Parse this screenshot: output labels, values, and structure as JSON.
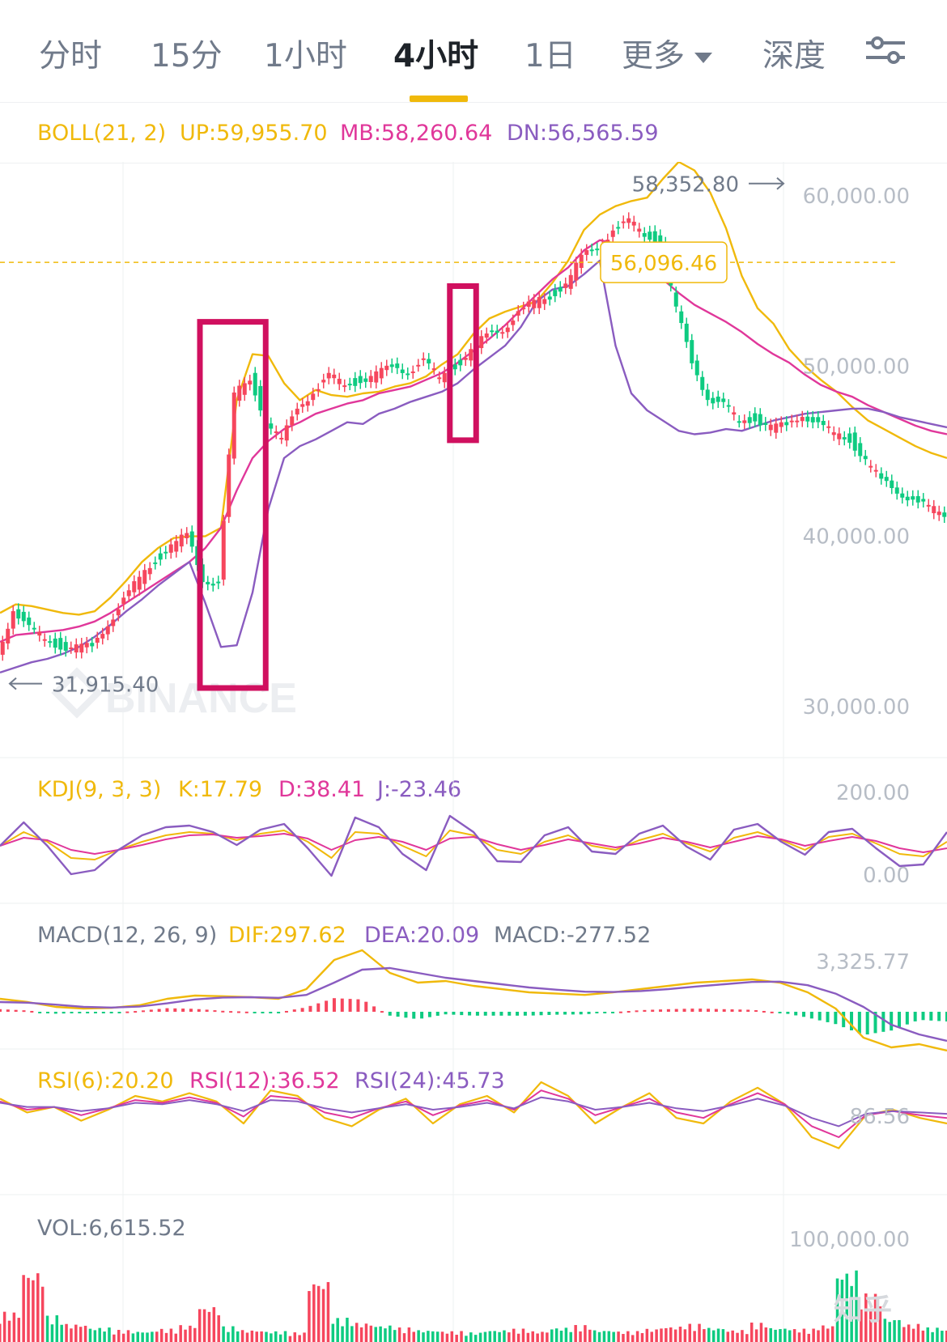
{
  "tabs": [
    {
      "label": "分时",
      "active": false
    },
    {
      "label": "15分",
      "active": false
    },
    {
      "label": "1小时",
      "active": false
    },
    {
      "label": "4小时",
      "active": true
    },
    {
      "label": "1日",
      "active": false
    },
    {
      "label": "更多",
      "active": false
    },
    {
      "label": "深度",
      "active": false
    }
  ],
  "colors": {
    "up": "#f6465d",
    "down": "#0ecb81",
    "yellow": "#f0b90b",
    "pink": "#e0379a",
    "purple": "#8a5cc0",
    "grid": "#eef0f2",
    "axis": "#b7bdc6",
    "text": "#707a8a",
    "highlight": "#d0105f"
  },
  "indicators": {
    "boll": {
      "params": "BOLL(21, 2)",
      "up": "UP:59,955.70",
      "mb": "MB:58,260.64",
      "dn": "DN:56,565.59"
    },
    "kdj": {
      "params": "KDJ(9, 3, 3)",
      "k": "K:17.79",
      "d": "D:38.41",
      "j": "J:-23.46"
    },
    "macd": {
      "params": "MACD(12, 26, 9)",
      "dif": "DIF:297.62",
      "dea": "DEA:20.09",
      "macd": "MACD:-277.52"
    },
    "rsi": {
      "rsi6": "RSI(6):20.20",
      "rsi12": "RSI(12):36.52",
      "rsi24": "RSI(24):45.73"
    },
    "vol": {
      "label": "VOL:6,615.52"
    }
  },
  "chart_data": {
    "type": "line",
    "price_ylim": [
      27000,
      62000
    ],
    "price_ticks": [
      "60,000.00",
      "50,000.00",
      "40,000.00",
      "30,000.00"
    ],
    "price_tick_values": [
      60000,
      50000,
      40000,
      30000
    ],
    "high_label": "58,352.80",
    "low_label": "31,915.40",
    "current_price": 56096.46,
    "current_price_label": "56,096.46",
    "x": [
      0,
      6,
      12,
      18,
      24,
      30,
      36,
      42,
      48,
      54,
      60,
      66,
      72,
      78,
      84,
      90,
      96,
      102,
      108,
      114,
      120,
      126,
      132,
      138,
      144,
      150,
      156,
      162,
      168,
      174,
      180,
      186,
      192,
      198,
      204,
      210,
      216,
      222,
      228,
      234,
      240,
      246,
      252,
      258,
      264,
      270,
      276,
      282,
      288,
      294,
      300,
      306,
      312,
      318,
      324,
      330,
      336,
      342,
      348,
      354,
      360
    ],
    "series": [
      {
        "values": [
          33000,
          35800,
          34500,
          34000,
          33600,
          33400,
          33500,
          35000,
          36200,
          37500,
          38700,
          39400,
          40000,
          37600,
          37200,
          48200,
          49400,
          46800,
          45500,
          47700,
          48500,
          49300,
          49000,
          49200,
          49400,
          50000,
          49800,
          50200,
          49300,
          50100,
          50800,
          51800,
          52300,
          53100,
          53700,
          54200,
          54800,
          56300,
          57100,
          58000,
          58400,
          57800,
          57300,
          53200,
          50300,
          48200,
          47600,
          46800,
          47000,
          46300,
          46500,
          47300,
          46500,
          46000,
          45800,
          44400,
          43200,
          42800,
          42100,
          41600,
          41400
        ]
      },
      {
        "values": [
          35500,
          36000,
          35900,
          35700,
          35500,
          35400,
          35600,
          36400,
          37400,
          38500,
          39300,
          39900,
          40000,
          40000,
          40500,
          48000,
          50700,
          50600,
          49000,
          48000,
          48600,
          48300,
          48200,
          48400,
          48500,
          48800,
          49000,
          49400,
          50100,
          50700,
          51900,
          52800,
          53200,
          53500,
          53800,
          54900,
          56200,
          58000,
          58900,
          59400,
          59700,
          59900,
          61000,
          62000,
          61500,
          60200,
          58100,
          55300,
          53400,
          52500,
          51000,
          50000,
          49200,
          48500,
          47600,
          46800,
          46300,
          45800,
          45300,
          44900,
          44600
        ]
      },
      {
        "values": [
          33800,
          34200,
          34300,
          34400,
          34500,
          34700,
          35000,
          35500,
          36100,
          36700,
          37300,
          37900,
          38500,
          39300,
          40500,
          42700,
          44600,
          45600,
          46300,
          46700,
          47200,
          47500,
          47800,
          48000,
          48400,
          48600,
          48800,
          49200,
          49600,
          50200,
          50900,
          51600,
          52400,
          53300,
          54200,
          55100,
          55800,
          56800,
          57400,
          57200,
          56800,
          56000,
          55100,
          54300,
          53600,
          53100,
          52600,
          52000,
          51300,
          50700,
          50200,
          49500,
          48900,
          48500,
          48200,
          47700,
          47300,
          46900,
          46500,
          46200,
          46000
        ]
      },
      {
        "values": [
          32000,
          32300,
          32600,
          32800,
          33100,
          33500,
          34100,
          34800,
          35600,
          36300,
          37100,
          37800,
          38500,
          36100,
          33500,
          33600,
          36700,
          41600,
          44600,
          45300,
          45700,
          46200,
          46700,
          46600,
          47200,
          47500,
          47900,
          48200,
          48500,
          49000,
          49800,
          50500,
          51200,
          52300,
          53800,
          54500,
          54700,
          55400,
          56200,
          51200,
          48400,
          47400,
          46800,
          46200,
          46000,
          46100,
          46300,
          46200,
          46500,
          46800,
          47000,
          47200,
          47300,
          47400,
          47500,
          47500,
          47300,
          47000,
          46800,
          46600,
          46400
        ]
      }
    ],
    "series_panels": [
      "price",
      "price",
      "price",
      "price"
    ],
    "series_colors": [
      "#f6465d",
      "#f0b90b",
      "#e0379a",
      "#8a5cc0"
    ],
    "highlight_boxes": [
      {
        "x0": 76,
        "x1": 101
      },
      {
        "x0": 171,
        "x1": 181
      }
    ],
    "kdj": {
      "ticks": [
        "200.00",
        "0.00"
      ],
      "tick_values": [
        200,
        0
      ],
      "k": [
        55,
        72,
        60,
        40,
        38,
        50,
        60,
        68,
        72,
        70,
        62,
        70,
        74,
        60,
        40,
        72,
        70,
        55,
        42,
        74,
        68,
        50,
        45,
        60,
        68,
        55,
        50,
        62,
        70,
        58,
        48,
        65,
        72,
        62,
        50,
        66,
        70,
        58,
        45,
        42,
        60
      ],
      "d": [
        55,
        65,
        62,
        50,
        45,
        50,
        56,
        63,
        68,
        69,
        65,
        67,
        70,
        64,
        50,
        62,
        66,
        60,
        50,
        64,
        66,
        57,
        50,
        56,
        63,
        58,
        53,
        58,
        65,
        60,
        53,
        60,
        67,
        63,
        55,
        61,
        66,
        61,
        52,
        47,
        52
      ],
      "j": [
        55,
        84,
        55,
        20,
        25,
        50,
        68,
        78,
        80,
        72,
        56,
        75,
        82,
        52,
        18,
        90,
        78,
        45,
        25,
        92,
        72,
        36,
        35,
        68,
        78,
        48,
        45,
        70,
        80,
        54,
        38,
        75,
        82,
        60,
        44,
        72,
        76,
        52,
        30,
        32,
        72
      ]
    },
    "macd": {
      "ticks": [
        "3,325.77"
      ],
      "tick_values": [
        3325.77
      ],
      "dif": [
        400,
        300,
        150,
        100,
        120,
        200,
        400,
        500,
        480,
        450,
        400,
        700,
        1600,
        1900,
        1200,
        900,
        950,
        800,
        700,
        600,
        560,
        520,
        600,
        700,
        800,
        900,
        950,
        1000,
        900,
        600,
        100,
        -800,
        -1100,
        -1000,
        -1200
      ],
      "dea": [
        300,
        280,
        220,
        150,
        130,
        160,
        260,
        380,
        440,
        450,
        430,
        520,
        900,
        1300,
        1350,
        1200,
        1050,
        950,
        850,
        750,
        680,
        620,
        610,
        640,
        700,
        780,
        850,
        920,
        930,
        820,
        560,
        150,
        -400,
        -700,
        -900
      ],
      "hist": [
        80,
        40,
        -60,
        -40,
        -20,
        30,
        110,
        90,
        30,
        0,
        -20,
        140,
        420,
        380,
        -120,
        -230,
        -80,
        -120,
        -120,
        -120,
        -90,
        -80,
        -10,
        50,
        80,
        100,
        80,
        60,
        -20,
        -180,
        -380,
        -720,
        -580,
        -250,
        -300
      ]
    },
    "rsi": {
      "ticks": [
        "86.56"
      ],
      "tick_values": [
        86.56
      ],
      "rsi6": [
        58,
        48,
        52,
        42,
        50,
        60,
        56,
        62,
        56,
        40,
        64,
        60,
        44,
        38,
        50,
        58,
        40,
        54,
        60,
        48,
        70,
        60,
        40,
        52,
        62,
        44,
        40,
        56,
        66,
        54,
        30,
        22,
        46,
        50,
        44,
        40
      ],
      "rsi12": [
        56,
        50,
        52,
        46,
        51,
        57,
        55,
        59,
        55,
        45,
        60,
        58,
        48,
        44,
        51,
        56,
        46,
        53,
        57,
        50,
        64,
        58,
        46,
        52,
        58,
        48,
        44,
        54,
        62,
        54,
        38,
        30,
        46,
        49,
        46,
        44
      ],
      "rsi24": [
        55,
        52,
        52,
        49,
        51,
        55,
        54,
        57,
        54,
        49,
        57,
        56,
        51,
        48,
        51,
        54,
        50,
        52,
        55,
        51,
        59,
        56,
        50,
        52,
        55,
        51,
        49,
        53,
        58,
        53,
        44,
        38,
        47,
        49,
        48,
        47
      ]
    },
    "volume": {
      "ticks": [
        "100,000.00"
      ],
      "tick_values": [
        100000
      ],
      "values": [
        25000,
        60000,
        22000,
        15000,
        12000,
        10000,
        9000,
        11000,
        14000,
        30000,
        13000,
        10000,
        9000,
        8000,
        52000,
        20000,
        16000,
        14000,
        12000,
        10000,
        9000,
        8000,
        10000,
        11000,
        9000,
        12000,
        14000,
        10000,
        9000,
        11000,
        13000,
        15000,
        12000,
        10000,
        16000,
        12000,
        11000,
        14000,
        60000,
        40000,
        20000,
        15000,
        12000,
        10000
      ],
      "up": [
        1,
        1,
        0,
        1,
        0,
        1,
        0,
        1,
        1,
        1,
        0,
        1,
        0,
        1,
        1,
        0,
        1,
        0,
        1,
        0,
        1,
        0,
        0,
        1,
        1,
        0,
        1,
        0,
        1,
        1,
        1,
        1,
        0,
        1,
        1,
        0,
        1,
        1,
        0,
        1,
        0,
        1,
        0,
        1
      ]
    }
  },
  "watermarks": {
    "brand": "BINANCE",
    "source": "知乎"
  }
}
